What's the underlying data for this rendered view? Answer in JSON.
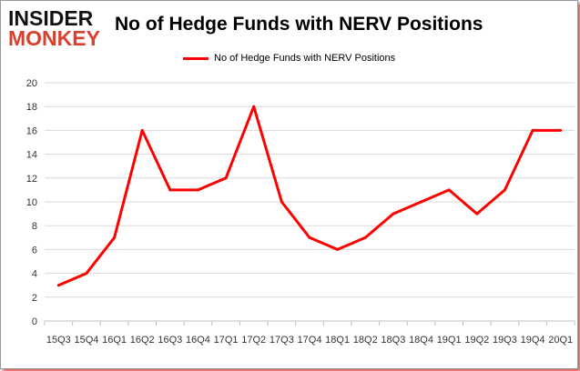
{
  "logo": {
    "line1": "INSIDER",
    "line2": "MONKEY"
  },
  "chart_data": {
    "type": "line",
    "title": "No of Hedge Funds with NERV Positions",
    "xlabel": "",
    "ylabel": "",
    "categories": [
      "15Q3",
      "15Q4",
      "16Q1",
      "16Q2",
      "16Q3",
      "16Q4",
      "17Q1",
      "17Q2",
      "17Q3",
      "17Q4",
      "18Q1",
      "18Q2",
      "18Q3",
      "18Q4",
      "19Q1",
      "19Q2",
      "19Q3",
      "19Q4",
      "20Q1"
    ],
    "series": [
      {
        "name": "No of Hedge Funds with NERV Positions",
        "color": "#ff0000",
        "values": [
          3,
          4,
          7,
          16,
          11,
          11,
          12,
          18,
          10,
          7,
          6,
          7,
          9,
          10,
          11,
          9,
          11,
          16,
          16
        ]
      }
    ],
    "ylim": [
      0,
      20
    ],
    "yticks": [
      0,
      2,
      4,
      6,
      8,
      10,
      12,
      14,
      16,
      18,
      20
    ],
    "grid": true,
    "legend": "top"
  }
}
